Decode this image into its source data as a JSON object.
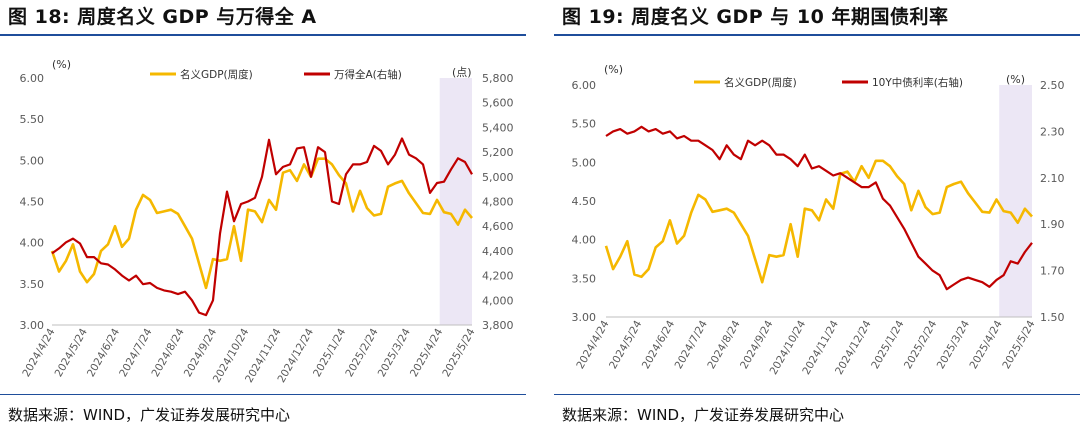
{
  "chart_data": [
    {
      "type": "line",
      "title": "图 18:  周度名义 GDP 与万得全 A",
      "source": "数据来源：WIND，广发证券发展研究中心",
      "left_unit": "(%)",
      "right_unit": "(点)",
      "left_ylim": [
        3.0,
        6.0
      ],
      "left_ticks": [
        "3.00",
        "3.50",
        "4.00",
        "4.50",
        "5.00",
        "5.50",
        "6.00"
      ],
      "right_ylim": [
        3800,
        5800
      ],
      "right_ticks": [
        "3,800",
        "4,000",
        "4,200",
        "4,400",
        "4,600",
        "4,800",
        "5,000",
        "5,200",
        "5,400",
        "5,600",
        "5,800"
      ],
      "x_ticks": [
        "2024/4/24",
        "2024/5/24",
        "2024/6/24",
        "2024/7/24",
        "2024/8/24",
        "2024/9/24",
        "2024/10/24",
        "2024/11/24",
        "2024/12/24",
        "2025/1/24",
        "2025/2/24",
        "2025/3/24",
        "2025/4/24",
        "2025/5/24"
      ],
      "shade_range": [
        12,
        13
      ],
      "series": [
        {
          "name": "名义GDP(周度)",
          "axis": "left",
          "color": "#f5b800",
          "values": [
            3.9,
            3.65,
            3.78,
            3.98,
            3.65,
            3.52,
            3.62,
            3.9,
            3.98,
            4.2,
            3.95,
            4.05,
            4.4,
            4.58,
            4.52,
            4.36,
            4.38,
            4.4,
            4.35,
            4.2,
            4.05,
            3.75,
            3.45,
            3.8,
            3.78,
            3.8,
            4.2,
            3.78,
            4.4,
            4.38,
            4.25,
            4.52,
            4.4,
            4.85,
            4.88,
            4.75,
            4.95,
            4.8,
            5.02,
            5.02,
            4.95,
            4.82,
            4.72,
            4.38,
            4.63,
            4.42,
            4.33,
            4.35,
            4.68,
            4.72,
            4.75,
            4.6,
            4.48,
            4.36,
            4.35,
            4.52,
            4.37,
            4.35,
            4.22,
            4.4,
            4.3
          ]
        },
        {
          "name": "万得全A(右轴)",
          "axis": "right",
          "color": "#c00000",
          "values": [
            4380,
            4420,
            4470,
            4500,
            4460,
            4350,
            4350,
            4300,
            4290,
            4250,
            4200,
            4160,
            4200,
            4130,
            4140,
            4100,
            4080,
            4070,
            4050,
            4070,
            4000,
            3900,
            3880,
            4000,
            4540,
            4880,
            4640,
            4780,
            4800,
            4830,
            5000,
            5300,
            5020,
            5080,
            5100,
            5230,
            5240,
            5000,
            5240,
            5200,
            4800,
            4780,
            5020,
            5100,
            5100,
            5120,
            5250,
            5210,
            5100,
            5180,
            5310,
            5180,
            5150,
            5100,
            4870,
            4950,
            4960,
            5060,
            5150,
            5120,
            5020
          ]
        }
      ]
    },
    {
      "type": "line",
      "title": "图 19:  周度名义 GDP 与 10 年期国债利率",
      "source": "数据来源：WIND，广发证券发展研究中心",
      "left_unit": "(%)",
      "right_unit": "(%)",
      "left_ylim": [
        3.0,
        6.0
      ],
      "left_ticks": [
        "3.00",
        "3.50",
        "4.00",
        "4.50",
        "5.00",
        "5.50",
        "6.00"
      ],
      "right_ylim": [
        1.5,
        2.5
      ],
      "right_ticks": [
        "1.50",
        "1.70",
        "1.90",
        "2.10",
        "2.30",
        "2.50"
      ],
      "x_ticks": [
        "2024/4/24",
        "2024/5/24",
        "2024/6/24",
        "2024/7/24",
        "2024/8/24",
        "2024/9/24",
        "2024/10/24",
        "2024/11/24",
        "2024/12/24",
        "2025/1/24",
        "2025/2/24",
        "2025/3/24",
        "2025/4/24",
        "2025/5/24"
      ],
      "shade_range": [
        12,
        13
      ],
      "series": [
        {
          "name": "名义GDP(周度)",
          "axis": "left",
          "color": "#f5b800",
          "values": [
            3.92,
            3.62,
            3.78,
            3.98,
            3.55,
            3.52,
            3.62,
            3.9,
            3.98,
            4.25,
            3.95,
            4.05,
            4.35,
            4.58,
            4.52,
            4.36,
            4.38,
            4.4,
            4.35,
            4.2,
            4.05,
            3.75,
            3.45,
            3.8,
            3.78,
            3.8,
            4.2,
            3.78,
            4.4,
            4.38,
            4.25,
            4.52,
            4.4,
            4.85,
            4.88,
            4.75,
            4.95,
            4.8,
            5.02,
            5.02,
            4.95,
            4.82,
            4.72,
            4.38,
            4.63,
            4.42,
            4.33,
            4.35,
            4.68,
            4.72,
            4.75,
            4.6,
            4.48,
            4.36,
            4.35,
            4.52,
            4.37,
            4.35,
            4.22,
            4.4,
            4.3
          ]
        },
        {
          "name": "10Y中债利率(右轴)",
          "axis": "right",
          "color": "#c00000",
          "values": [
            2.28,
            2.3,
            2.31,
            2.29,
            2.3,
            2.32,
            2.3,
            2.31,
            2.29,
            2.3,
            2.27,
            2.28,
            2.26,
            2.26,
            2.24,
            2.22,
            2.18,
            2.24,
            2.2,
            2.18,
            2.26,
            2.24,
            2.26,
            2.24,
            2.2,
            2.2,
            2.18,
            2.15,
            2.2,
            2.14,
            2.15,
            2.13,
            2.11,
            2.12,
            2.1,
            2.08,
            2.06,
            2.06,
            2.08,
            2.01,
            1.98,
            1.93,
            1.88,
            1.82,
            1.76,
            1.73,
            1.7,
            1.68,
            1.62,
            1.64,
            1.66,
            1.67,
            1.66,
            1.65,
            1.63,
            1.66,
            1.68,
            1.74,
            1.73,
            1.78,
            1.82
          ]
        }
      ]
    }
  ],
  "legend_prefix": "",
  "panels": {
    "left": {
      "title": "图 18:  周度名义 GDP 与万得全 A",
      "source": "数据来源：WIND，广发证券发展研究中心",
      "legend_a": "名义GDP(周度)",
      "legend_b": "万得全A(右轴)",
      "left_unit": "(%)",
      "right_unit": "(点)"
    },
    "right": {
      "title": "图 19:  周度名义 GDP 与 10 年期国债利率",
      "source": "数据来源：WIND，广发证券发展研究中心",
      "legend_a": "名义GDP(周度)",
      "legend_b": "10Y中债利率(右轴)",
      "left_unit": "(%)",
      "right_unit": "(%)"
    }
  },
  "colors": {
    "gdp": "#f5b800",
    "series_b": "#c00000",
    "shade": "#ece7f5",
    "axis_text": "#595959",
    "rule": "#1f4e9b"
  }
}
